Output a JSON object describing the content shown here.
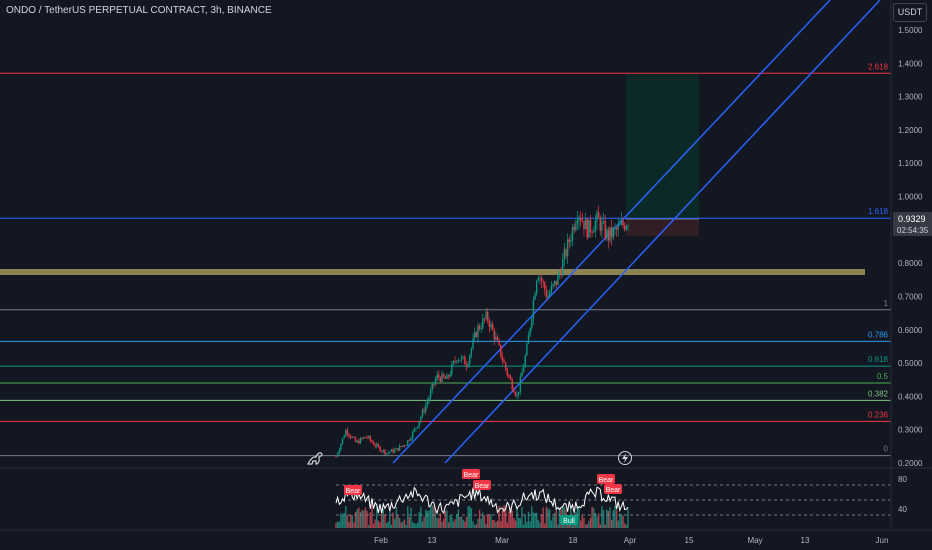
{
  "header": {
    "symbol_title": "ONDO / TetherUS PERPETUAL CONTRACT, 3h, BINANCE",
    "currency": "USDT"
  },
  "price_axis": {
    "ticks": [
      "1.5000",
      "1.4000",
      "1.3000",
      "1.2000",
      "1.1000",
      "1.0000",
      "0.8000",
      "0.7000",
      "0.6000",
      "0.5000",
      "0.4000",
      "0.3000",
      "0.2000"
    ],
    "last_price": "0.9329",
    "countdown": "02:54:35"
  },
  "time_axis": {
    "ticks": [
      "Feb",
      "13",
      "Mar",
      "18",
      "Apr",
      "15",
      "May",
      "13",
      "Jun"
    ]
  },
  "indicator_axis": {
    "ticks": [
      "80",
      "40"
    ]
  },
  "chart_data": {
    "type": "candlestick",
    "ylim": [
      0.2,
      1.5
    ],
    "fib_levels": [
      {
        "label": "2.618",
        "price": 1.37,
        "color": "#f23645"
      },
      {
        "label": "1.618",
        "price": 0.935,
        "color": "#2962ff"
      },
      {
        "label": "1",
        "price": 0.66,
        "color": "#787b86"
      },
      {
        "label": "0.786",
        "price": 0.565,
        "color": "#2a9df4"
      },
      {
        "label": "0.618",
        "price": 0.491,
        "color": "#089981"
      },
      {
        "label": "0.5",
        "price": 0.44,
        "color": "#4caf50"
      },
      {
        "label": "0.382",
        "price": 0.388,
        "color": "#81c784"
      },
      {
        "label": "0.236",
        "price": 0.325,
        "color": "#f23645"
      },
      {
        "label": "0",
        "price": 0.222,
        "color": "#787b86"
      }
    ],
    "support_zone": {
      "from": 0.77,
      "to": 0.785,
      "color": "#9a8f5a"
    },
    "price_path": [
      {
        "x": "Jan 26",
        "y": 0.22
      },
      {
        "x": "Jan 27",
        "y": 0.3
      },
      {
        "x": "Jan 29",
        "y": 0.26
      },
      {
        "x": "Jan 31",
        "y": 0.28
      },
      {
        "x": "Feb 2",
        "y": 0.25
      },
      {
        "x": "Feb 5",
        "y": 0.23
      },
      {
        "x": "Feb 9",
        "y": 0.24
      },
      {
        "x": "Feb 13",
        "y": 0.26
      },
      {
        "x": "Feb 17",
        "y": 0.31
      },
      {
        "x": "Feb 20",
        "y": 0.38
      },
      {
        "x": "Feb 23",
        "y": 0.46
      },
      {
        "x": "Feb 26",
        "y": 0.45
      },
      {
        "x": "Mar 1",
        "y": 0.52
      },
      {
        "x": "Mar 4",
        "y": 0.5
      },
      {
        "x": "Mar 7",
        "y": 0.6
      },
      {
        "x": "Mar 9",
        "y": 0.64
      },
      {
        "x": "Mar 12",
        "y": 0.56
      },
      {
        "x": "Mar 15",
        "y": 0.47
      },
      {
        "x": "Mar 17",
        "y": 0.4
      },
      {
        "x": "Mar 18",
        "y": 0.55
      },
      {
        "x": "Mar 19",
        "y": 0.78
      },
      {
        "x": "Mar 20",
        "y": 0.7
      },
      {
        "x": "Mar 21",
        "y": 0.75
      },
      {
        "x": "Mar 22",
        "y": 0.85
      },
      {
        "x": "Mar 23",
        "y": 0.96
      },
      {
        "x": "Mar 24",
        "y": 0.9
      },
      {
        "x": "Mar 25",
        "y": 0.93
      },
      {
        "x": "Mar 27",
        "y": 0.88
      },
      {
        "x": "Mar 28",
        "y": 0.9
      },
      {
        "x": "Mar 29",
        "y": 0.93
      }
    ],
    "indicator_labels": [
      {
        "text": "Bear",
        "color": "#f23645"
      },
      {
        "text": "Bear",
        "color": "#f23645"
      },
      {
        "text": "Bear",
        "color": "#f23645"
      },
      {
        "text": "Bull",
        "color": "#089981"
      },
      {
        "text": "Bear",
        "color": "#f23645"
      },
      {
        "text": "Bear",
        "color": "#f23645"
      }
    ]
  }
}
